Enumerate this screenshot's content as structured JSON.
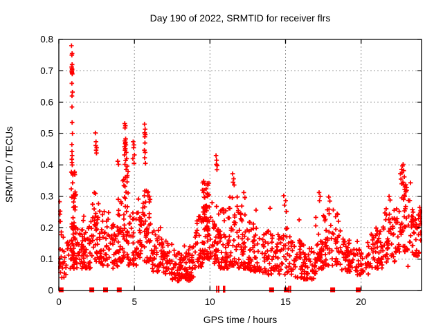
{
  "chart_data": {
    "type": "scatter",
    "title": "Day 190 of 2022, SRMTID for receiver flrs",
    "xlabel": "GPS time / hours",
    "ylabel": "SRMTID / TECUs",
    "xlim": [
      0,
      24
    ],
    "ylim": [
      0,
      0.8
    ],
    "xticks": {
      "values": [
        0,
        5,
        10,
        15,
        20
      ],
      "labels": [
        "0",
        "5",
        "10",
        "15",
        "20"
      ]
    },
    "yticks": {
      "values": [
        0,
        0.1,
        0.2,
        0.3,
        0.4,
        0.5,
        0.6,
        0.7,
        0.8
      ],
      "labels": [
        "0",
        "0.1",
        "0.2",
        "0.3",
        "0.4",
        "0.5",
        "0.6",
        "0.7",
        "0.8"
      ]
    },
    "grid": {
      "show": true,
      "style": "dashed"
    },
    "legend": "none",
    "series_name": "SRMTID for receiver flrs",
    "marker": {
      "shape": "plus",
      "size": 7,
      "stroke_width": 1.8
    },
    "colors": {
      "marker": "#ff0000",
      "grid": "#909090",
      "axis": "#000000",
      "background": "#ffffff",
      "text": "#000000"
    },
    "outlier_points": [
      [
        0.84,
        0.78
      ],
      [
        0.88,
        0.755
      ],
      [
        0.86,
        0.75
      ],
      [
        0.88,
        0.72
      ],
      [
        0.85,
        0.712
      ],
      [
        0.87,
        0.707
      ],
      [
        0.88,
        0.703
      ],
      [
        0.86,
        0.698
      ],
      [
        0.87,
        0.694
      ],
      [
        0.89,
        0.69
      ],
      [
        0.86,
        0.66
      ],
      [
        0.9,
        0.632
      ],
      [
        0.87,
        0.62
      ],
      [
        0.87,
        0.585
      ],
      [
        0.88,
        0.535
      ],
      [
        0.9,
        0.5
      ],
      [
        0.86,
        0.465
      ],
      [
        0.87,
        0.443
      ],
      [
        0.88,
        0.43
      ],
      [
        0.86,
        0.418
      ],
      [
        0.87,
        0.408
      ],
      [
        0.89,
        0.4
      ],
      [
        0.04,
        0.283
      ],
      [
        0.07,
        0.243
      ],
      [
        0.1,
        0.22
      ],
      [
        2.42,
        0.502
      ],
      [
        2.46,
        0.474
      ],
      [
        2.44,
        0.462
      ],
      [
        2.5,
        0.455
      ],
      [
        2.47,
        0.447
      ],
      [
        2.49,
        0.438
      ],
      [
        3.9,
        0.412
      ],
      [
        3.95,
        0.402
      ],
      [
        4.36,
        0.532
      ],
      [
        4.4,
        0.525
      ],
      [
        4.38,
        0.518
      ],
      [
        4.42,
        0.483
      ],
      [
        4.37,
        0.477
      ],
      [
        4.41,
        0.472
      ],
      [
        4.39,
        0.468
      ],
      [
        4.44,
        0.464
      ],
      [
        4.35,
        0.458
      ],
      [
        4.4,
        0.452
      ],
      [
        4.38,
        0.447
      ],
      [
        4.46,
        0.44
      ],
      [
        4.34,
        0.432
      ],
      [
        4.49,
        0.42
      ],
      [
        4.42,
        0.414
      ],
      [
        4.37,
        0.402
      ],
      [
        4.52,
        0.396
      ],
      [
        4.45,
        0.386
      ],
      [
        4.92,
        0.474
      ],
      [
        4.97,
        0.464
      ],
      [
        4.95,
        0.455
      ],
      [
        5.0,
        0.432
      ],
      [
        4.9,
        0.42
      ],
      [
        4.98,
        0.405
      ],
      [
        5.67,
        0.53
      ],
      [
        5.71,
        0.514
      ],
      [
        5.68,
        0.503
      ],
      [
        5.72,
        0.497
      ],
      [
        5.69,
        0.49
      ],
      [
        5.7,
        0.47
      ],
      [
        5.66,
        0.447
      ],
      [
        5.71,
        0.44
      ],
      [
        5.68,
        0.423
      ],
      [
        5.73,
        0.405
      ],
      [
        9.58,
        0.348
      ],
      [
        9.66,
        0.34
      ],
      [
        10.4,
        0.43
      ],
      [
        10.44,
        0.415
      ],
      [
        10.42,
        0.402
      ],
      [
        10.48,
        0.398
      ],
      [
        10.46,
        0.385
      ],
      [
        11.5,
        0.372
      ],
      [
        11.57,
        0.356
      ],
      [
        11.53,
        0.345
      ],
      [
        11.6,
        0.336
      ],
      [
        12.24,
        0.312
      ],
      [
        12.31,
        0.296
      ],
      [
        13.05,
        0.256
      ],
      [
        13.98,
        0.262
      ],
      [
        14.88,
        0.302
      ],
      [
        15.01,
        0.286
      ],
      [
        14.93,
        0.272
      ],
      [
        15.06,
        0.252
      ],
      [
        15.9,
        0.225
      ],
      [
        17.22,
        0.312
      ],
      [
        17.29,
        0.3
      ],
      [
        17.25,
        0.286
      ],
      [
        17.86,
        0.298
      ],
      [
        17.93,
        0.285
      ],
      [
        21.85,
        0.3
      ],
      [
        21.92,
        0.288
      ],
      [
        22.6,
        0.372
      ],
      [
        22.68,
        0.386
      ],
      [
        22.74,
        0.397
      ],
      [
        22.78,
        0.402
      ],
      [
        22.82,
        0.382
      ],
      [
        22.71,
        0.375
      ],
      [
        22.86,
        0.362
      ],
      [
        22.64,
        0.355
      ],
      [
        22.77,
        0.345
      ],
      [
        22.69,
        0.34
      ],
      [
        22.9,
        0.33
      ],
      [
        22.95,
        0.315
      ],
      [
        23.1,
        0.077
      ],
      [
        23.88,
        0.265
      ],
      [
        23.95,
        0.248
      ],
      [
        23.92,
        0.235
      ]
    ],
    "noise_bands": [
      [
        0.0,
        0.3,
        14,
        0.07,
        0.26,
        1.8
      ],
      [
        0.05,
        0.4,
        7,
        0.04,
        0.09,
        1.0
      ],
      [
        0.3,
        0.8,
        16,
        0.05,
        0.16,
        1.5
      ],
      [
        0.78,
        1.15,
        52,
        0.1,
        0.38,
        1.7
      ],
      [
        0.8,
        1.1,
        12,
        0.06,
        0.12,
        1.0
      ],
      [
        1.15,
        1.6,
        28,
        0.07,
        0.2,
        1.6
      ],
      [
        1.6,
        2.1,
        36,
        0.07,
        0.24,
        1.7
      ],
      [
        2.1,
        2.7,
        42,
        0.09,
        0.335,
        1.8
      ],
      [
        2.7,
        3.3,
        38,
        0.08,
        0.26,
        1.7
      ],
      [
        3.3,
        3.9,
        32,
        0.07,
        0.22,
        1.6
      ],
      [
        3.9,
        4.2,
        24,
        0.09,
        0.3,
        1.6
      ],
      [
        4.2,
        4.6,
        40,
        0.1,
        0.38,
        1.5
      ],
      [
        4.6,
        5.25,
        38,
        0.08,
        0.26,
        1.6
      ],
      [
        5.25,
        5.6,
        26,
        0.1,
        0.3,
        1.5
      ],
      [
        5.6,
        6.1,
        38,
        0.09,
        0.32,
        1.5
      ],
      [
        6.1,
        6.8,
        38,
        0.06,
        0.22,
        1.6
      ],
      [
        6.8,
        7.5,
        40,
        0.05,
        0.16,
        1.4
      ],
      [
        7.5,
        8.3,
        46,
        0.03,
        0.13,
        1.3
      ],
      [
        8.3,
        9.0,
        46,
        0.03,
        0.15,
        1.3
      ],
      [
        9.0,
        9.5,
        38,
        0.07,
        0.24,
        1.4
      ],
      [
        9.5,
        10.1,
        55,
        0.1,
        0.345,
        1.4
      ],
      [
        9.55,
        9.9,
        20,
        0.17,
        0.32,
        1.0
      ],
      [
        10.1,
        10.65,
        40,
        0.08,
        0.28,
        1.6
      ],
      [
        10.65,
        11.2,
        40,
        0.07,
        0.26,
        1.6
      ],
      [
        11.2,
        11.9,
        46,
        0.08,
        0.3,
        1.7
      ],
      [
        11.9,
        12.6,
        46,
        0.07,
        0.27,
        1.7
      ],
      [
        12.6,
        13.4,
        46,
        0.06,
        0.22,
        1.6
      ],
      [
        13.4,
        14.2,
        44,
        0.05,
        0.19,
        1.5
      ],
      [
        14.2,
        15.3,
        50,
        0.05,
        0.21,
        1.6
      ],
      [
        15.3,
        16.2,
        44,
        0.04,
        0.16,
        1.4
      ],
      [
        16.2,
        17.0,
        44,
        0.035,
        0.14,
        1.3
      ],
      [
        17.0,
        17.6,
        38,
        0.06,
        0.25,
        1.5
      ],
      [
        17.6,
        18.7,
        55,
        0.08,
        0.26,
        1.5
      ],
      [
        18.7,
        19.5,
        44,
        0.06,
        0.18,
        1.5
      ],
      [
        19.5,
        20.6,
        44,
        0.05,
        0.16,
        1.4
      ],
      [
        20.6,
        21.4,
        46,
        0.07,
        0.2,
        1.5
      ],
      [
        21.4,
        22.3,
        50,
        0.09,
        0.27,
        1.4
      ],
      [
        22.3,
        23.3,
        58,
        0.12,
        0.355,
        1.2
      ],
      [
        23.3,
        23.8,
        34,
        0.11,
        0.26,
        1.2
      ],
      [
        23.8,
        24.0,
        16,
        0.1,
        0.27,
        1.0
      ]
    ],
    "zero_flags": {
      "squares_x": [
        0.15,
        2.18,
        3.09,
        4.0,
        14.08,
        15.05,
        18.12,
        19.81
      ],
      "bars_x": [
        10.45,
        10.58,
        10.9,
        10.97,
        15.22,
        15.33
      ]
    },
    "seed": 7
  }
}
